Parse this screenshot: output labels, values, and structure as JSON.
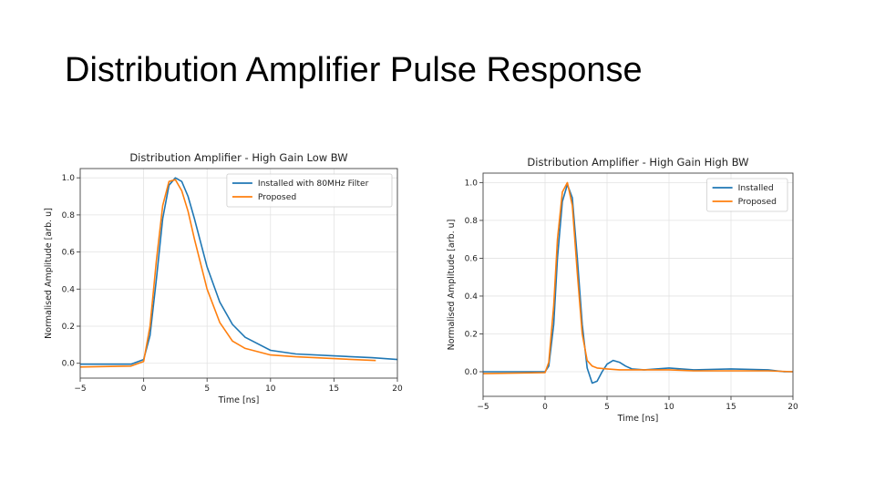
{
  "slide": {
    "title": "Distribution Amplifier Pulse Response"
  },
  "colors": {
    "series_blue": "#1f77b4",
    "series_orange": "#ff7f0e",
    "grid": "#e3e3e3",
    "axis": "#444444"
  },
  "chart_data": [
    {
      "type": "line",
      "title": "Distribution Amplifier - High Gain Low BW",
      "xlabel": "Time [ns]",
      "ylabel": "Normalised Amplitude [arb. u]",
      "xlim": [
        -5,
        20
      ],
      "ylim": [
        -0.08,
        1.05
      ],
      "xticks": [
        -5,
        0,
        5,
        10,
        15,
        20
      ],
      "yticks": [
        0.0,
        0.2,
        0.4,
        0.6,
        0.8,
        1.0
      ],
      "xtick_labels": [
        "−5",
        "0",
        "5",
        "10",
        "15",
        "20"
      ],
      "ytick_labels": [
        "0.0",
        "0.2",
        "0.4",
        "0.6",
        "0.8",
        "1.0"
      ],
      "grid": true,
      "legend_position": "top-right",
      "series": [
        {
          "name": "Installed with 80MHz Filter",
          "color": "#1f77b4",
          "x": [
            -5,
            -1,
            0,
            0.5,
            1,
            1.5,
            2,
            2.5,
            3,
            3.5,
            4,
            5,
            6,
            7,
            8,
            10,
            12,
            15,
            18,
            20
          ],
          "y": [
            -0.005,
            -0.005,
            0.02,
            0.15,
            0.45,
            0.78,
            0.96,
            1.0,
            0.98,
            0.9,
            0.78,
            0.52,
            0.33,
            0.21,
            0.14,
            0.07,
            0.05,
            0.04,
            0.03,
            0.02
          ]
        },
        {
          "name": "Proposed",
          "color": "#ff7f0e",
          "x": [
            -5,
            -1,
            0,
            0.5,
            1,
            1.5,
            2,
            2.5,
            3,
            3.5,
            4,
            5,
            6,
            7,
            8,
            10,
            12,
            15,
            18.3
          ],
          "y": [
            -0.02,
            -0.015,
            0.01,
            0.2,
            0.55,
            0.85,
            0.98,
            0.99,
            0.93,
            0.82,
            0.67,
            0.4,
            0.22,
            0.12,
            0.08,
            0.045,
            0.035,
            0.025,
            0.015
          ]
        }
      ]
    },
    {
      "type": "line",
      "title": "Distribution Amplifier - High Gain High BW",
      "xlabel": "Time [ns]",
      "ylabel": "Normalised Amplitude [arb. u]",
      "xlim": [
        -5,
        20
      ],
      "ylim": [
        -0.13,
        1.05
      ],
      "xticks": [
        -5,
        0,
        5,
        10,
        15,
        20
      ],
      "yticks": [
        0.0,
        0.2,
        0.4,
        0.6,
        0.8,
        1.0
      ],
      "xtick_labels": [
        "−5",
        "0",
        "5",
        "10",
        "15",
        "20"
      ],
      "ytick_labels": [
        "0.0",
        "0.2",
        "0.4",
        "0.6",
        "0.8",
        "1.0"
      ],
      "grid": true,
      "legend_position": "top-right",
      "series": [
        {
          "name": "Installed",
          "color": "#1f77b4",
          "x": [
            -5,
            0,
            0.3,
            0.7,
            1.0,
            1.4,
            1.8,
            2.2,
            2.6,
            3.0,
            3.4,
            3.8,
            4.2,
            4.6,
            5.0,
            5.5,
            6.0,
            6.5,
            7.0,
            8.0,
            10,
            12,
            15,
            18,
            19.3,
            20
          ],
          "y": [
            0.0,
            0.0,
            0.03,
            0.25,
            0.6,
            0.9,
            0.99,
            0.92,
            0.6,
            0.25,
            0.02,
            -0.06,
            -0.05,
            0.0,
            0.04,
            0.06,
            0.05,
            0.03,
            0.015,
            0.01,
            0.02,
            0.01,
            0.015,
            0.01,
            0.0,
            0.0
          ]
        },
        {
          "name": "Proposed",
          "color": "#ff7f0e",
          "x": [
            -5,
            0,
            0.3,
            0.7,
            1.0,
            1.4,
            1.8,
            2.2,
            2.6,
            3.0,
            3.4,
            3.8,
            4.2,
            5.0,
            6.0,
            8.0,
            10,
            12,
            15,
            18,
            20
          ],
          "y": [
            -0.01,
            -0.005,
            0.05,
            0.35,
            0.7,
            0.95,
            1.0,
            0.88,
            0.52,
            0.2,
            0.06,
            0.03,
            0.02,
            0.015,
            0.01,
            0.01,
            0.01,
            0.005,
            0.005,
            0.005,
            0.0
          ]
        }
      ]
    }
  ]
}
